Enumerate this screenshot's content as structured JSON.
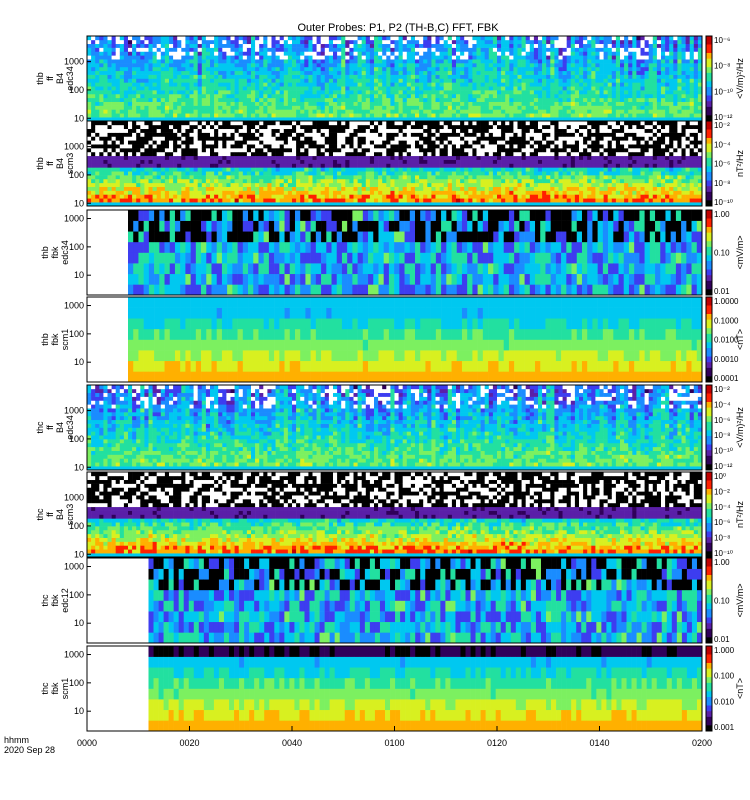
{
  "chart_data": {
    "type": "heatmap",
    "title": "Outer Probes: P1, P2 (TH-B,C) FFT, FBK",
    "x": {
      "tick_labels": [
        "0000",
        "0020",
        "0040",
        "0100",
        "0120",
        "0140",
        "0200"
      ],
      "header_label": "hhmm",
      "date_label": "2020 Sep 28",
      "range_minutes": [
        0,
        120
      ]
    },
    "panels": [
      {
        "id": "thb-ff-b4-edc34",
        "ylabel": [
          "thb",
          "ff",
          "B4",
          "edc34"
        ],
        "kind": "fft",
        "yticks": [
          "1000",
          "100",
          "10"
        ],
        "yrange_hz": [
          8,
          8000
        ],
        "cbar_label": "<V/m)²/Hz",
        "cbar_ticks": [
          "10⁻⁶",
          "10⁻⁸",
          "10⁻¹⁰",
          "10⁻¹²"
        ],
        "cbar_log": true
      },
      {
        "id": "thb-ff-b4-scm3",
        "ylabel": [
          "thb",
          "ff",
          "B4",
          "scm3"
        ],
        "kind": "fft",
        "yticks": [
          "1000",
          "100",
          "10"
        ],
        "yrange_hz": [
          8,
          8000
        ],
        "cbar_label": "nT²/Hz",
        "cbar_ticks": [
          "10⁻²",
          "10⁻⁴",
          "10⁻⁶",
          "10⁻⁸",
          "10⁻¹⁰"
        ],
        "cbar_log": true
      },
      {
        "id": "thb-fbk-edc34",
        "ylabel": [
          "thb",
          "fbk",
          "edc34"
        ],
        "kind": "fbk",
        "data_start_min": 8,
        "yticks": [
          "1000",
          "100",
          "10"
        ],
        "yrange_hz": [
          2,
          2000
        ],
        "cbar_label": "<mV/m>",
        "cbar_ticks": [
          "1.00",
          "0.10",
          "0.01"
        ],
        "cbar_log": true
      },
      {
        "id": "thb-fbk-scm1",
        "ylabel": [
          "thb",
          "fbk",
          "scm1"
        ],
        "kind": "fbk",
        "data_start_min": 8,
        "yticks": [
          "1000",
          "100",
          "10"
        ],
        "yrange_hz": [
          2,
          2000
        ],
        "cbar_label": "<nT>",
        "cbar_ticks": [
          "1.0000",
          "0.1000",
          "0.0100",
          "0.0010",
          "0.0001"
        ],
        "cbar_log": true
      },
      {
        "id": "thc-ff-b4-edc34",
        "ylabel": [
          "thc",
          "ff",
          "B4",
          "edc34"
        ],
        "kind": "fft",
        "yticks": [
          "1000",
          "100",
          "10"
        ],
        "yrange_hz": [
          8,
          8000
        ],
        "cbar_label": "<V/m)²/Hz",
        "cbar_ticks": [
          "10⁻²",
          "10⁻⁴",
          "10⁻⁶",
          "10⁻⁸",
          "10⁻¹⁰",
          "10⁻¹²"
        ],
        "cbar_log": true
      },
      {
        "id": "thc-ff-b4-scm3",
        "ylabel": [
          "thc",
          "ff",
          "B4",
          "scm3"
        ],
        "kind": "fft",
        "yticks": [
          "1000",
          "100",
          "10"
        ],
        "yrange_hz": [
          8,
          8000
        ],
        "cbar_label": "nT²/Hz",
        "cbar_ticks": [
          "10⁰",
          "10⁻²",
          "10⁻⁴",
          "10⁻⁶",
          "10⁻⁸",
          "10⁻¹⁰"
        ],
        "cbar_log": true
      },
      {
        "id": "thc-fbk-edc12",
        "ylabel": [
          "thc",
          "fbk",
          "edc12"
        ],
        "kind": "fbk",
        "data_start_min": 12,
        "yticks": [
          "1000",
          "100",
          "10"
        ],
        "yrange_hz": [
          2,
          2000
        ],
        "cbar_label": "<mV/m>",
        "cbar_ticks": [
          "1.00",
          "0.10",
          "0.01"
        ],
        "cbar_log": true
      },
      {
        "id": "thc-fbk-scm1",
        "ylabel": [
          "thc",
          "fbk",
          "scm1"
        ],
        "kind": "fbk",
        "data_start_min": 12,
        "yticks": [
          "1000",
          "100",
          "10"
        ],
        "yrange_hz": [
          2,
          2000
        ],
        "cbar_label": "<nT>",
        "cbar_ticks": [
          "1.000",
          "0.100",
          "0.010",
          "0.001"
        ],
        "cbar_log": true
      }
    ],
    "colormap": [
      "#000000",
      "#30005a",
      "#5a1fa8",
      "#3d3df0",
      "#1a8cff",
      "#00c8f0",
      "#22e0a0",
      "#7cf060",
      "#d8f020",
      "#ffb000",
      "#ff2000",
      "#c00000"
    ]
  }
}
